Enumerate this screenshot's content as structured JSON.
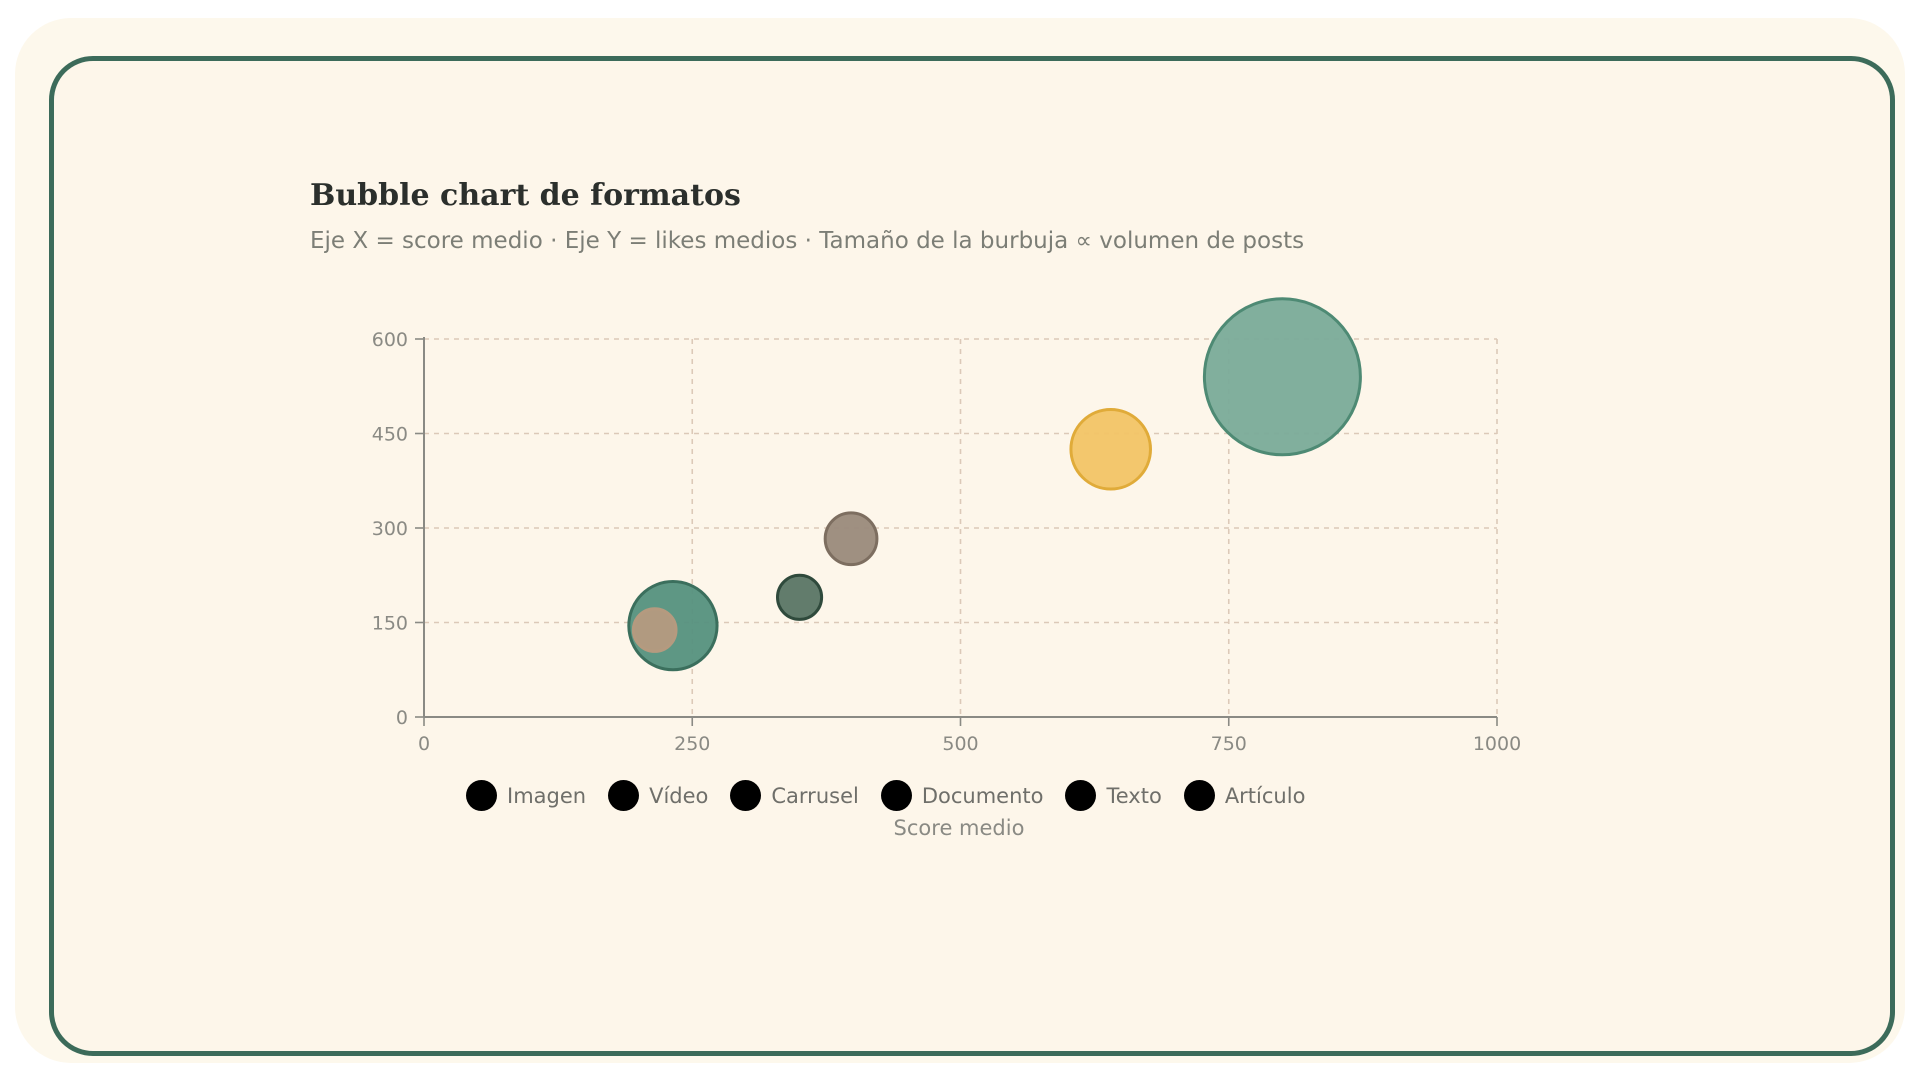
{
  "chart_data": {
    "type": "scatter",
    "title": "Bubble chart de formatos",
    "subtitle": "Eje X = score medio · Eje Y = likes medios · Tamaño de la burbuja ∝ volumen de posts",
    "xlabel": "Score medio",
    "ylabel": "",
    "xlim": [
      0,
      1000
    ],
    "ylim": [
      0,
      600
    ],
    "xticks": [
      "0",
      "250",
      "500",
      "750",
      "1000"
    ],
    "yticks": [
      "0",
      "150",
      "300",
      "450",
      "600"
    ],
    "grid": true,
    "legend_position": "bottom",
    "legend": [
      "Imagen",
      "Vídeo",
      "Carrusel",
      "Documento",
      "Texto",
      "Artículo"
    ],
    "legend_swatch_color": "#000000",
    "points": [
      {
        "x": 800,
        "y": 540,
        "size": 10,
        "fill": "#7aab99",
        "stroke": "#4e8a74"
      },
      {
        "x": 640,
        "y": 425,
        "size": 2.6,
        "fill": "#f2c466",
        "stroke": "#e0ab39"
      },
      {
        "x": 398,
        "y": 283,
        "size": 1.1,
        "fill": "#9a8a7b",
        "stroke": "#7d6e60"
      },
      {
        "x": 350,
        "y": 190,
        "size": 0.8,
        "fill": "#5a7565",
        "stroke": "#2f4a3c"
      },
      {
        "x": 232,
        "y": 145,
        "size": 3.2,
        "fill": "#55917e",
        "stroke": "#3b6f5d"
      },
      {
        "x": 215,
        "y": 138,
        "size": 0.75,
        "fill": "#b59a7f",
        "stroke": "#b59a7f"
      }
    ]
  }
}
